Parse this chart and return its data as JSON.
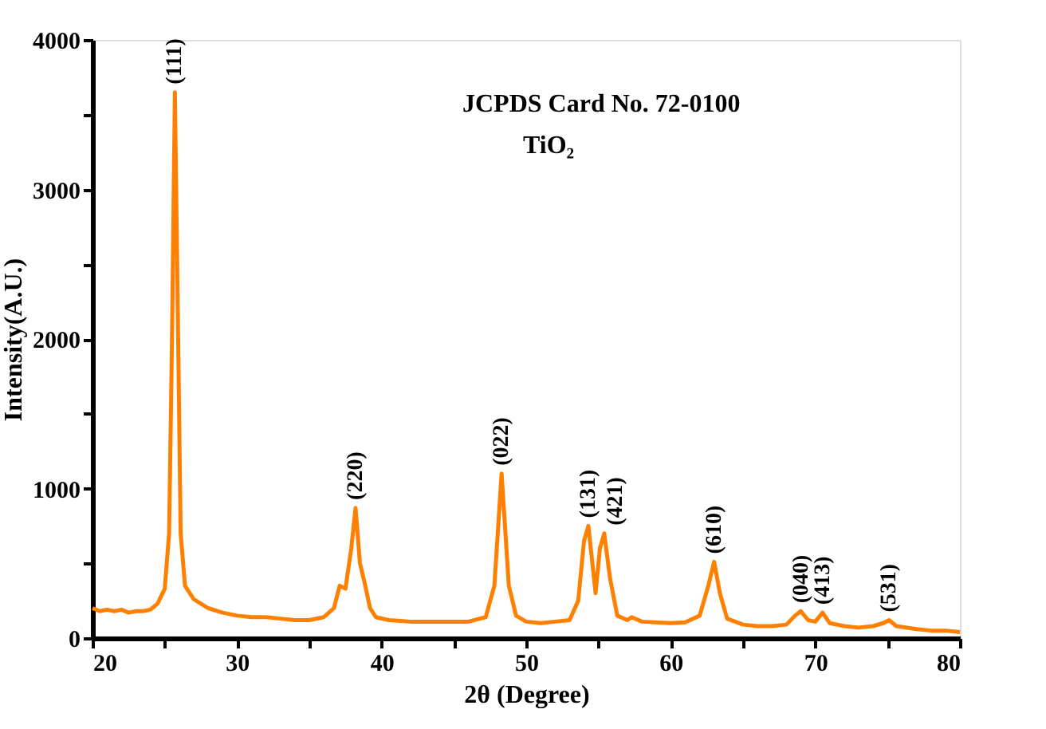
{
  "chart_data": {
    "type": "line",
    "xlabel": "2θ (Degree)",
    "ylabel": "Intensity(A.U.)",
    "xlim": [
      20,
      80
    ],
    "ylim": [
      0,
      4000
    ],
    "xticks": [
      20,
      {
        "value": 25,
        "label": null
      },
      30,
      {
        "value": 35,
        "label": null
      },
      40,
      {
        "value": 45,
        "label": null
      },
      50,
      {
        "value": 55,
        "label": null
      },
      60,
      {
        "value": 65,
        "label": null
      },
      70,
      {
        "value": 75,
        "label": null
      },
      80
    ],
    "yticks": [
      0,
      {
        "value": 500,
        "label": null
      },
      1000,
      {
        "value": 1500,
        "label": null
      },
      2000,
      {
        "value": 2500,
        "label": null
      },
      3000,
      {
        "value": 3500,
        "label": null
      },
      4000
    ],
    "grid": false,
    "marker": "none",
    "line_style": "solid",
    "series": [
      {
        "color": "#ff8000",
        "x": [
          20,
          20.5,
          21,
          21.5,
          22,
          22.5,
          23,
          23.5,
          24,
          24.5,
          25,
          25.3,
          25.5,
          25.7,
          25.9,
          26.1,
          26.4,
          27,
          27.5,
          28,
          29,
          30,
          31,
          32,
          33,
          34,
          35,
          36,
          36.7,
          37.1,
          37.5,
          37.9,
          38.2,
          38.5,
          38.8,
          39.2,
          39.6,
          40.5,
          42,
          44,
          46,
          47.2,
          47.8,
          48.3,
          48.8,
          49.3,
          50,
          51,
          52,
          53,
          53.6,
          54.0,
          54.3,
          54.8,
          55.1,
          55.4,
          55.8,
          56.3,
          57,
          57.3,
          58,
          60,
          61,
          62,
          62.6,
          63.0,
          63.4,
          63.9,
          65,
          66,
          67,
          68,
          68.6,
          69.0,
          69.5,
          70.0,
          70.5,
          71,
          72,
          73,
          74,
          74.7,
          75.1,
          75.6,
          77,
          78,
          79,
          80
        ],
        "values": [
          200,
          180,
          190,
          180,
          190,
          170,
          180,
          180,
          190,
          230,
          330,
          700,
          2000,
          3650,
          2200,
          700,
          350,
          260,
          230,
          200,
          170,
          150,
          140,
          140,
          130,
          120,
          120,
          140,
          200,
          350,
          330,
          600,
          870,
          500,
          380,
          200,
          140,
          120,
          110,
          110,
          110,
          140,
          350,
          1100,
          350,
          150,
          110,
          100,
          110,
          120,
          250,
          650,
          750,
          300,
          600,
          700,
          400,
          150,
          120,
          140,
          110,
          100,
          105,
          150,
          350,
          510,
          300,
          130,
          90,
          80,
          80,
          90,
          150,
          180,
          120,
          110,
          170,
          100,
          80,
          70,
          80,
          100,
          120,
          80,
          60,
          50,
          50,
          40
        ]
      }
    ],
    "annotations": [
      {
        "text": "(111)",
        "x": 25.7,
        "y": 3650
      },
      {
        "text": "(220)",
        "x": 38.2,
        "y": 870
      },
      {
        "text": "(022)",
        "x": 48.3,
        "y": 1100
      },
      {
        "text": "(131)",
        "x": 54.3,
        "y": 750
      },
      {
        "text": "(421)",
        "x": 55.4,
        "y": 700
      },
      {
        "text": "(610)",
        "x": 63.0,
        "y": 510
      },
      {
        "text": "(040)",
        "x": 69.0,
        "y": 180
      },
      {
        "text": "(413)",
        "x": 70.5,
        "y": 170
      },
      {
        "text": "(531)",
        "x": 75.1,
        "y": 120
      },
      "JCPDS Card No. 72-0100",
      "TiO₂"
    ]
  }
}
